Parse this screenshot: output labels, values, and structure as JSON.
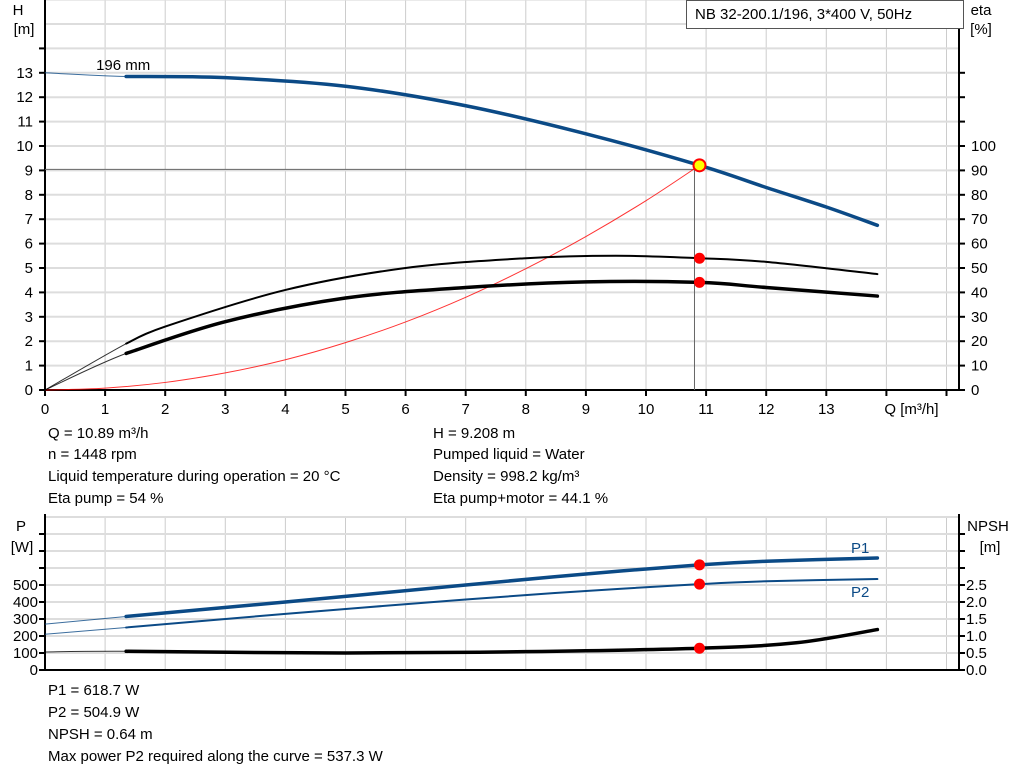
{
  "title": "NB 32-200.1/196, 3*400 V, 50Hz",
  "colors": {
    "head": "#0b4a86",
    "efficiency": "#000000",
    "system": "#ff0000",
    "power": "#0b4a86",
    "npsh": "#000000",
    "duty_point": "#ff0000",
    "duty_marker_fill": "#ffff00",
    "grid": "#cccccc"
  },
  "chart_data": [
    {
      "type": "line",
      "xlabel": "Q [m³/h]",
      "ylabel_left": [
        "H",
        "[m]"
      ],
      "ylabel_right": [
        "eta",
        "[%]"
      ],
      "xlim": [
        0,
        15
      ],
      "ylim_left": [
        0,
        16
      ],
      "ylim_right": [
        0,
        160
      ],
      "x_ticks": [
        0,
        1,
        2,
        3,
        4,
        5,
        6,
        7,
        8,
        9,
        10,
        11,
        12,
        13
      ],
      "y_ticks_left": [
        0,
        1,
        2,
        3,
        4,
        5,
        6,
        7,
        8,
        9,
        10,
        11,
        12,
        13
      ],
      "y_ticks_right": [
        0,
        10,
        20,
        30,
        40,
        50,
        60,
        70,
        80,
        90,
        100
      ],
      "grid": true,
      "operating_range_start": 1.35,
      "series": [
        {
          "name": "196 mm",
          "axis": "left",
          "points": [
            [
              0,
              13
            ],
            [
              1.35,
              12.85
            ],
            [
              3,
              12.8
            ],
            [
              5,
              12.45
            ],
            [
              7,
              11.65
            ],
            [
              9,
              10.5
            ],
            [
              10.89,
              9.208
            ],
            [
              12,
              8.3
            ],
            [
              13,
              7.5
            ],
            [
              13.85,
              6.75
            ]
          ]
        },
        {
          "axis": "right",
          "role": "eta pump",
          "points": [
            [
              0,
              0
            ],
            [
              1.35,
              19
            ],
            [
              2,
              26
            ],
            [
              4,
              41
            ],
            [
              6,
              50
            ],
            [
              8,
              54
            ],
            [
              9.5,
              55
            ],
            [
              10.89,
              54
            ],
            [
              12,
              52.5
            ],
            [
              13.85,
              47.5
            ]
          ]
        },
        {
          "axis": "right",
          "role": "eta pump+motor",
          "points": [
            [
              0,
              0
            ],
            [
              1.35,
              15
            ],
            [
              3,
              28
            ],
            [
              5,
              37.7
            ],
            [
              7,
              42
            ],
            [
              9,
              44.3
            ],
            [
              10.89,
              44.1
            ],
            [
              12,
              42
            ],
            [
              13.85,
              38.5
            ]
          ]
        },
        {
          "axis": "left",
          "role": "system curve",
          "points": [
            [
              0,
              0
            ],
            [
              1,
              0.078
            ],
            [
              2,
              0.31
            ],
            [
              3,
              0.7
            ],
            [
              4,
              1.24
            ],
            [
              5,
              1.94
            ],
            [
              6,
              2.79
            ],
            [
              7,
              3.8
            ],
            [
              8,
              4.97
            ],
            [
              9,
              6.29
            ],
            [
              10,
              7.76
            ],
            [
              10.89,
              9.208
            ]
          ]
        }
      ],
      "duty_point": {
        "Q": 10.89,
        "H": 9.208,
        "eta_pump": 54,
        "eta_pump_motor": 44.1
      }
    },
    {
      "type": "line",
      "ylabel_left": [
        "P",
        "[W]"
      ],
      "ylabel_right": [
        "NPSH",
        "[m]"
      ],
      "xlim": [
        0,
        15
      ],
      "ylim_left": [
        0,
        900
      ],
      "ylim_right": [
        0,
        4.5
      ],
      "y_ticks_left": [
        0,
        100,
        200,
        300,
        400,
        500
      ],
      "y_ticks_right": [
        "0.0",
        "0.5",
        "1.0",
        "1.5",
        "2.0",
        "2.5"
      ],
      "grid": true,
      "series": [
        {
          "name": "P1",
          "axis": "left",
          "points": [
            [
              0,
              270
            ],
            [
              1.35,
              315
            ],
            [
              4,
              400
            ],
            [
              7,
              500
            ],
            [
              9,
              565
            ],
            [
              10.89,
              618.7
            ],
            [
              12,
              640
            ],
            [
              13.85,
              659
            ]
          ]
        },
        {
          "name": "P2",
          "axis": "left",
          "points": [
            [
              0,
              210
            ],
            [
              1.35,
              250
            ],
            [
              4,
              330
            ],
            [
              7,
              415
            ],
            [
              9,
              465
            ],
            [
              10.89,
              504.9
            ],
            [
              12,
              522
            ],
            [
              13.85,
              535
            ]
          ]
        },
        {
          "axis": "right",
          "role": "NPSH",
          "points": [
            [
              0,
              0.53
            ],
            [
              1.35,
              0.55
            ],
            [
              5,
              0.5
            ],
            [
              8,
              0.54
            ],
            [
              10.89,
              0.64
            ],
            [
              12.5,
              0.8
            ],
            [
              13.85,
              1.19
            ]
          ]
        }
      ],
      "duty_point": {
        "Q": 10.89,
        "P1": 618.7,
        "P2": 504.9,
        "NPSH": 0.64
      }
    }
  ],
  "info_top": {
    "q": "Q = 10.89 m³/h",
    "n": "n = 1448 rpm",
    "temp": "Liquid temperature during operation = 20 °C",
    "eta_pump": "Eta pump = 54 %",
    "h": "H = 9.208 m",
    "liquid": "Pumped liquid = Water",
    "density": "Density = 998.2 kg/m³",
    "eta_pm": "Eta pump+motor = 44.1 %"
  },
  "info_bottom": {
    "p1": "P1 = 618.7 W",
    "p2": "P2 = 504.9 W",
    "npsh": "NPSH = 0.64 m",
    "maxp2": "Max power P2 required along the curve = 537.3 W"
  }
}
